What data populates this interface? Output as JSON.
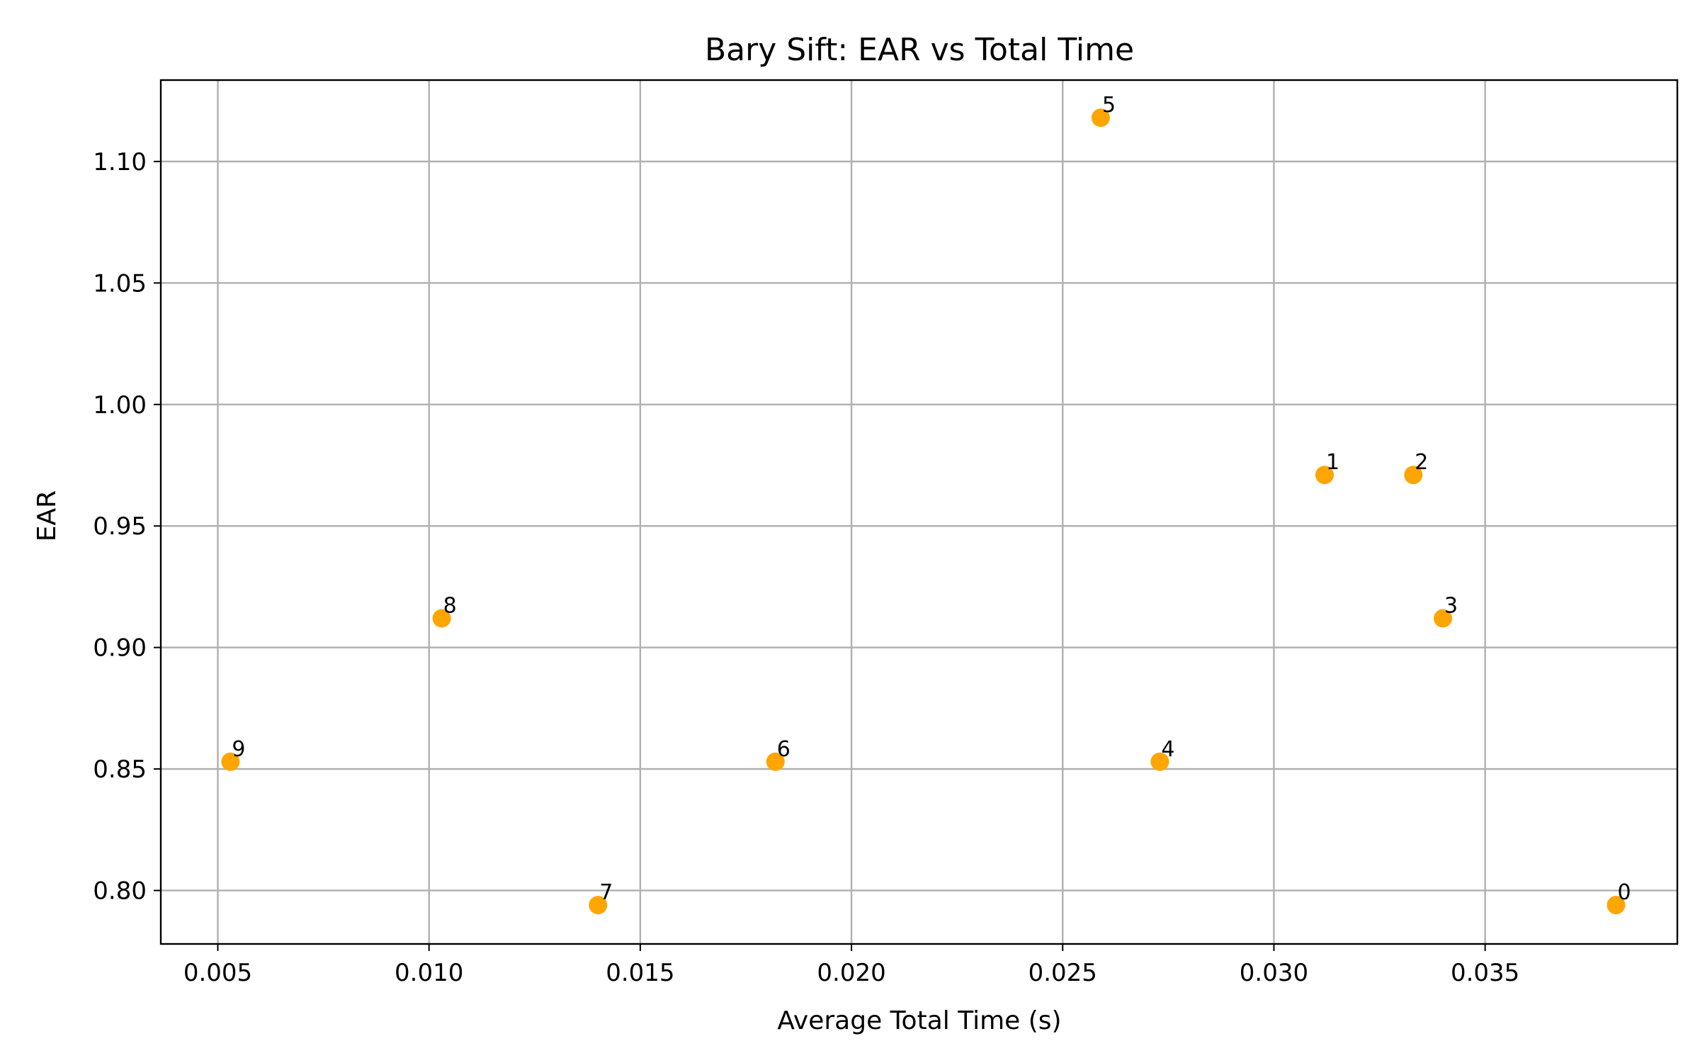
{
  "chart_data": {
    "type": "scatter",
    "title": "Bary Sift: EAR vs Total Time",
    "xlabel": "Average Total Time (s)",
    "ylabel": "EAR",
    "xlim": [
      0.00365,
      0.03955
    ],
    "ylim": [
      0.778,
      1.1335
    ],
    "xticks": [
      0.005,
      0.01,
      0.015,
      0.02,
      0.025,
      0.03,
      0.035
    ],
    "xtick_labels": [
      "0.005",
      "0.010",
      "0.015",
      "0.020",
      "0.025",
      "0.030",
      "0.035"
    ],
    "yticks": [
      0.8,
      0.85,
      0.9,
      0.95,
      1.0,
      1.05,
      1.1
    ],
    "ytick_labels": [
      "0.80",
      "0.85",
      "0.90",
      "0.95",
      "1.00",
      "1.05",
      "1.10"
    ],
    "grid": true,
    "color": "#ffa500",
    "points": [
      {
        "label": "0",
        "x": 0.0381,
        "y": 0.794
      },
      {
        "label": "1",
        "x": 0.0312,
        "y": 0.971
      },
      {
        "label": "2",
        "x": 0.0333,
        "y": 0.971
      },
      {
        "label": "3",
        "x": 0.034,
        "y": 0.912
      },
      {
        "label": "4",
        "x": 0.0273,
        "y": 0.853
      },
      {
        "label": "5",
        "x": 0.0259,
        "y": 1.118
      },
      {
        "label": "6",
        "x": 0.0182,
        "y": 0.853
      },
      {
        "label": "7",
        "x": 0.014,
        "y": 0.794
      },
      {
        "label": "8",
        "x": 0.0103,
        "y": 0.912
      },
      {
        "label": "9",
        "x": 0.0053,
        "y": 0.853
      }
    ]
  }
}
